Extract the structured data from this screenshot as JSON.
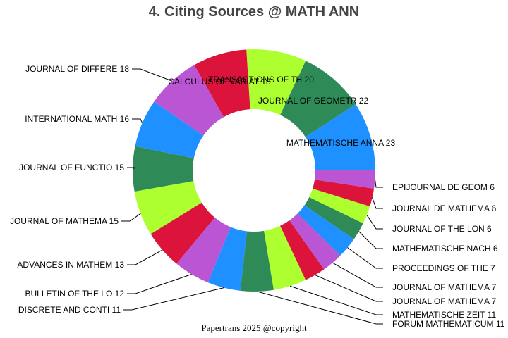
{
  "chart_data": {
    "type": "pie",
    "variant": "donut",
    "title": "4. Citing Sources @ MATH ANN",
    "footer": "Papertrans 2025 @copyright",
    "categories": [
      "MATHEMATISCHE ANNA",
      "JOURNAL OF GEOMETR",
      "TRANSACTIONS OF TH",
      "CALCULUS OF VARIAT",
      "JOURNAL OF DIFFERE",
      "INTERNATIONAL MATH",
      "JOURNAL OF FUNCTIO",
      "JOURNAL OF MATHEMA",
      "ADVANCES IN MATHEM",
      "BULLETIN OF THE LO",
      "DISCRETE AND CONTI",
      "FORUM MATHEMATICUM",
      "MATHEMATISCHE ZEIT",
      "JOURNAL OF MATHEMA",
      "JOURNAL OF MATHEMA",
      "PROCEEDINGS OF THE",
      "MATHEMATISCHE NACH",
      "JOURNAL OF THE LON",
      "JOURNAL DE MATHEMA",
      "EPIJOURNAL DE GEOM"
    ],
    "values": [
      23,
      22,
      20,
      18,
      18,
      16,
      15,
      15,
      13,
      12,
      11,
      11,
      11,
      7,
      7,
      7,
      6,
      6,
      6,
      6
    ],
    "colors": [
      "#1E90FF",
      "#2E8B57",
      "#ADFF2F",
      "#DC143C",
      "#BA55D3"
    ],
    "legend": "none (labels with leader lines)"
  },
  "labels": {
    "title": "4. Citing Sources @ MATH ANN",
    "footer": "Papertrans 2025 @copyright"
  }
}
